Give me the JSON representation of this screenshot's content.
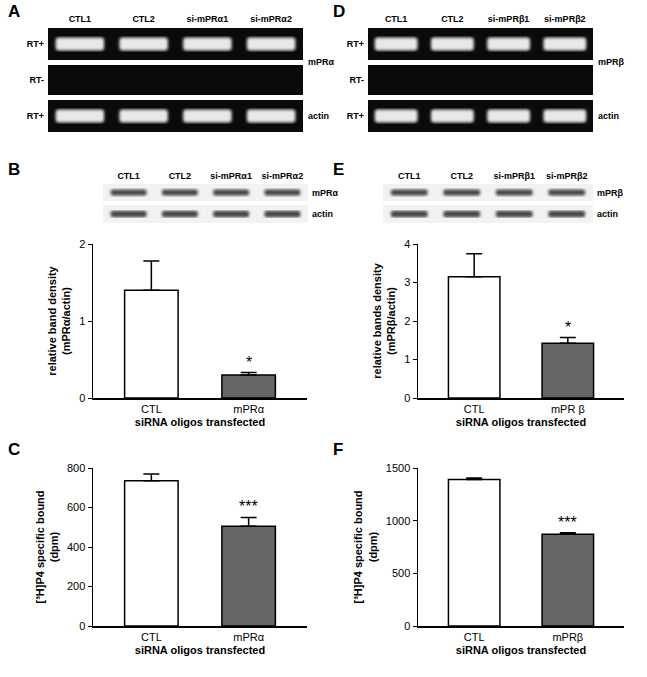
{
  "gels": [
    {
      "panel": "A",
      "kind": "rt-pcr",
      "lanes": [
        "CTL1",
        "CTL2",
        "si-mPRα1",
        "si-mPRα2"
      ],
      "rows": [
        {
          "label": "RT+",
          "bands": true
        },
        {
          "label": "RT-",
          "bands": false
        },
        {
          "label": "RT+",
          "bands": true
        }
      ],
      "targets": [
        "mPRα",
        "actin"
      ]
    },
    {
      "panel": "D",
      "kind": "rt-pcr",
      "lanes": [
        "CTL1",
        "CTL2",
        "si-mPRβ1",
        "si-mPRβ2"
      ],
      "rows": [
        {
          "label": "RT+",
          "bands": true
        },
        {
          "label": "RT-",
          "bands": false
        },
        {
          "label": "RT+",
          "bands": true
        }
      ],
      "targets": [
        "mPRβ",
        "actin"
      ]
    },
    {
      "panel": "B",
      "kind": "western",
      "lanes": [
        "CTL1",
        "CTL2",
        "si-mPRα1",
        "si-mPRα2"
      ],
      "targets": [
        "mPRα",
        "actin"
      ]
    },
    {
      "panel": "E",
      "kind": "western",
      "lanes": [
        "CTL1",
        "CTL2",
        "si-mPRβ1",
        "si-mPRβ2"
      ],
      "targets": [
        "mPRβ",
        "actin"
      ]
    }
  ],
  "chart_data": [
    {
      "panel": "B",
      "type": "bar",
      "categories": [
        "CTL",
        "mPRα"
      ],
      "values": [
        1.4,
        0.3
      ],
      "errors": [
        0.38,
        0.03
      ],
      "colors": [
        "#ffffff",
        "#666666"
      ],
      "ylim": [
        0,
        2
      ],
      "yticks": [
        0,
        1,
        2
      ],
      "y_label": [
        "relative band density",
        "(mPRα/actin)"
      ],
      "x_label": "siRNA oligos transfected",
      "annotations": [
        {
          "category": "mPRα",
          "text": "*"
        }
      ]
    },
    {
      "panel": "C",
      "type": "bar",
      "categories": [
        "CTL",
        "mPRα"
      ],
      "values": [
        735,
        505
      ],
      "errors": [
        35,
        45
      ],
      "colors": [
        "#ffffff",
        "#666666"
      ],
      "ylim": [
        0,
        800
      ],
      "yticks": [
        0,
        200,
        400,
        600,
        800
      ],
      "y_label": [
        "[³H]P4 specific bound",
        "(dpm)"
      ],
      "x_label": "siRNA oligos transfected",
      "annotations": [
        {
          "category": "mPRα",
          "text": "***"
        }
      ]
    },
    {
      "panel": "E",
      "type": "bar",
      "categories": [
        "CTL",
        "mPR β"
      ],
      "values": [
        3.15,
        1.42
      ],
      "errors": [
        0.6,
        0.15
      ],
      "colors": [
        "#ffffff",
        "#666666"
      ],
      "ylim": [
        0,
        4
      ],
      "yticks": [
        0,
        1,
        2,
        3,
        4
      ],
      "y_label": [
        "relative bands density",
        "(mPRβ/actin)"
      ],
      "x_label": "siRNA oligos transfected",
      "annotations": [
        {
          "category": "mPR β",
          "text": "*"
        }
      ]
    },
    {
      "panel": "F",
      "type": "bar",
      "categories": [
        "CTL",
        "mPRβ"
      ],
      "values": [
        1390,
        870
      ],
      "errors": [
        15,
        15
      ],
      "colors": [
        "#ffffff",
        "#666666"
      ],
      "ylim": [
        0,
        1500
      ],
      "yticks": [
        0,
        500,
        1000,
        1500
      ],
      "y_label": [
        "[³H]P4 specific bound",
        "(dpm)"
      ],
      "x_label": "siRNA oligos transfected",
      "annotations": [
        {
          "category": "mPRβ",
          "text": "***"
        }
      ]
    }
  ]
}
